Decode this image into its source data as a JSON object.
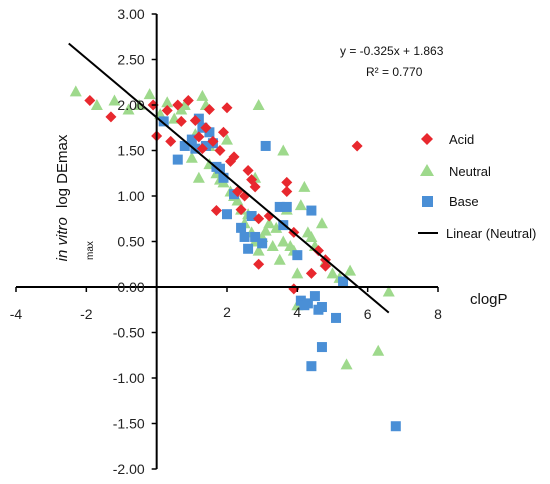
{
  "chart_data": {
    "type": "scatter",
    "xlabel": "clogP",
    "ylabel_italic": "in vitro",
    "ylabel_main": "log DEmax",
    "ylabel_sub": "max",
    "xlim": [
      -4,
      8
    ],
    "ylim": [
      -2,
      3
    ],
    "x_ticks": [
      "-4",
      "-2",
      "2",
      "4",
      "6",
      "8"
    ],
    "y_ticks": [
      "3.00",
      "2.50",
      "2.00",
      "1.50",
      "1.00",
      "0.50",
      "0.00",
      "-0.50",
      "-1.00",
      "-1.50",
      "-2.00"
    ],
    "grid": false,
    "legend_position": "right",
    "colors": {
      "acid": "#e8282e",
      "neutral": "#9ed98c",
      "base": "#4a8fd6",
      "trendline": "#000000"
    },
    "equation": "y = -0.325x + 1.863",
    "r_squared": "R² = 0.770",
    "trendline": {
      "name": "Linear (Neutral)",
      "slope": -0.325,
      "intercept": 1.863,
      "x_range": [
        -2.5,
        6.6
      ]
    },
    "series": [
      {
        "name": "Acid",
        "marker": "diamond",
        "points": [
          [
            -1.9,
            2.05
          ],
          [
            -1.3,
            1.87
          ],
          [
            -0.1,
            2.0
          ],
          [
            0.0,
            1.66
          ],
          [
            0.3,
            1.94
          ],
          [
            0.4,
            1.6
          ],
          [
            0.6,
            2.0
          ],
          [
            0.7,
            1.82
          ],
          [
            0.9,
            2.05
          ],
          [
            1.1,
            1.83
          ],
          [
            1.2,
            1.65
          ],
          [
            1.3,
            1.52
          ],
          [
            1.4,
            1.75
          ],
          [
            1.5,
            1.95
          ],
          [
            1.6,
            1.6
          ],
          [
            1.8,
            1.5
          ],
          [
            1.7,
            0.84
          ],
          [
            1.9,
            1.7
          ],
          [
            2.0,
            1.97
          ],
          [
            2.1,
            1.38
          ],
          [
            2.2,
            1.43
          ],
          [
            2.3,
            1.05
          ],
          [
            2.5,
            1.0
          ],
          [
            2.6,
            1.28
          ],
          [
            2.7,
            1.18
          ],
          [
            2.8,
            1.1
          ],
          [
            2.4,
            0.85
          ],
          [
            2.9,
            0.75
          ],
          [
            2.9,
            0.25
          ],
          [
            3.2,
            0.78
          ],
          [
            3.7,
            1.15
          ],
          [
            3.7,
            1.05
          ],
          [
            3.9,
            0.6
          ],
          [
            3.9,
            -0.02
          ],
          [
            4.4,
            0.15
          ],
          [
            4.6,
            0.4
          ],
          [
            4.8,
            0.3
          ],
          [
            4.8,
            0.23
          ],
          [
            5.7,
            1.55
          ]
        ]
      },
      {
        "name": "Neutral",
        "marker": "triangle",
        "points": [
          [
            -2.3,
            2.15
          ],
          [
            -1.7,
            2.0
          ],
          [
            -1.2,
            2.05
          ],
          [
            -0.8,
            1.95
          ],
          [
            -0.5,
            2.0
          ],
          [
            -0.2,
            2.12
          ],
          [
            0.1,
            1.9
          ],
          [
            0.3,
            2.03
          ],
          [
            0.5,
            1.85
          ],
          [
            0.7,
            1.95
          ],
          [
            0.8,
            2.0
          ],
          [
            1.0,
            1.6
          ],
          [
            1.1,
            1.68
          ],
          [
            1.2,
            1.2
          ],
          [
            1.3,
            2.1
          ],
          [
            1.4,
            2.0
          ],
          [
            1.5,
            1.55
          ],
          [
            1.5,
            1.35
          ],
          [
            1.7,
            1.25
          ],
          [
            1.8,
            1.18
          ],
          [
            1.9,
            1.15
          ],
          [
            2.1,
            1.05
          ],
          [
            2.2,
            1.0
          ],
          [
            2.3,
            0.95
          ],
          [
            2.4,
            0.85
          ],
          [
            2.5,
            0.7
          ],
          [
            2.6,
            0.8
          ],
          [
            2.7,
            0.6
          ],
          [
            2.8,
            0.5
          ],
          [
            2.9,
            0.4
          ],
          [
            3.0,
            0.55
          ],
          [
            3.1,
            0.62
          ],
          [
            3.2,
            0.7
          ],
          [
            3.3,
            0.45
          ],
          [
            3.4,
            0.65
          ],
          [
            3.5,
            0.3
          ],
          [
            3.6,
            0.5
          ],
          [
            3.7,
            0.85
          ],
          [
            3.8,
            0.45
          ],
          [
            3.9,
            0.4
          ],
          [
            4.0,
            0.15
          ],
          [
            4.1,
            0.9
          ],
          [
            4.2,
            1.1
          ],
          [
            4.3,
            0.6
          ],
          [
            4.4,
            0.55
          ],
          [
            4.5,
            0.45
          ],
          [
            4.7,
            0.7
          ],
          [
            4.8,
            0.28
          ],
          [
            5.0,
            0.15
          ],
          [
            5.2,
            0.1
          ],
          [
            5.4,
            -0.85
          ],
          [
            5.5,
            0.18
          ],
          [
            6.3,
            -0.7
          ],
          [
            6.6,
            -0.05
          ],
          [
            2.9,
            2.0
          ],
          [
            2.8,
            1.2
          ],
          [
            3.6,
            1.5
          ],
          [
            4.0,
            -0.2
          ],
          [
            1.0,
            1.42
          ],
          [
            2.0,
            1.62
          ]
        ]
      },
      {
        "name": "Base",
        "marker": "square",
        "points": [
          [
            0.2,
            1.82
          ],
          [
            0.6,
            1.4
          ],
          [
            0.8,
            1.55
          ],
          [
            1.0,
            1.62
          ],
          [
            1.1,
            1.52
          ],
          [
            1.2,
            1.85
          ],
          [
            1.3,
            1.75
          ],
          [
            1.4,
            1.55
          ],
          [
            1.5,
            1.7
          ],
          [
            1.6,
            1.58
          ],
          [
            1.7,
            1.32
          ],
          [
            1.8,
            1.3
          ],
          [
            1.9,
            1.2
          ],
          [
            2.0,
            0.8
          ],
          [
            2.2,
            1.02
          ],
          [
            2.4,
            0.65
          ],
          [
            2.5,
            0.55
          ],
          [
            2.6,
            0.42
          ],
          [
            2.7,
            0.78
          ],
          [
            2.8,
            0.55
          ],
          [
            3.0,
            0.48
          ],
          [
            3.1,
            1.55
          ],
          [
            3.5,
            0.88
          ],
          [
            3.6,
            0.68
          ],
          [
            3.7,
            0.88
          ],
          [
            4.0,
            0.35
          ],
          [
            4.1,
            -0.15
          ],
          [
            4.2,
            -0.2
          ],
          [
            4.3,
            -0.18
          ],
          [
            4.4,
            0.84
          ],
          [
            4.5,
            -0.1
          ],
          [
            4.6,
            -0.25
          ],
          [
            4.7,
            -0.22
          ],
          [
            4.7,
            -0.66
          ],
          [
            4.4,
            -0.87
          ],
          [
            5.1,
            -0.34
          ],
          [
            5.3,
            0.06
          ],
          [
            6.8,
            -1.53
          ]
        ]
      }
    ]
  }
}
